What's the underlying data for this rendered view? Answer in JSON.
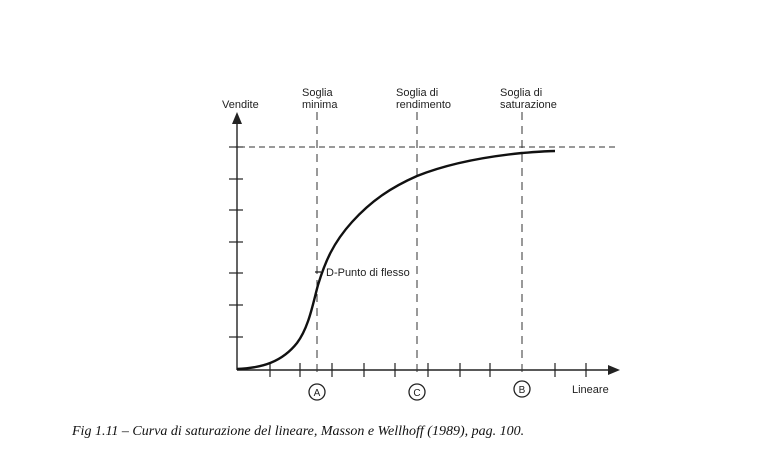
{
  "y_axis_label": "Vendite",
  "x_axis_label": "Lineare",
  "thresholds": [
    {
      "line1": "Soglia",
      "line2": "minima",
      "marker": "A"
    },
    {
      "line1": "Soglia di",
      "line2": "rendimento",
      "marker": "C"
    },
    {
      "line1": "Soglia di",
      "line2": "saturazione",
      "marker": "B"
    }
  ],
  "inflection_label": "D-Punto di flesso",
  "caption": "Fig 1.11 – Curva di saturazione del lineare, Masson e Wellhoff (1989), pag. 100."
}
